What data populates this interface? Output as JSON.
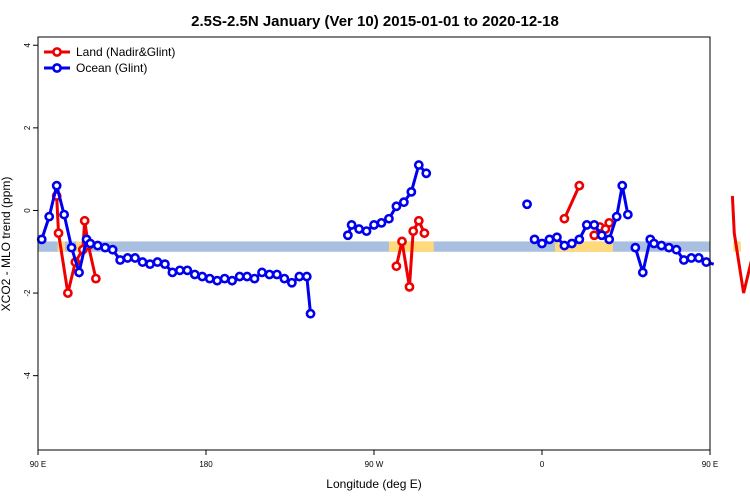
{
  "chart_data": {
    "type": "line",
    "title": "2.5S-2.5N January (Ver 10)   2015-01-01 to 2020-12-18",
    "xlabel": "Longitude (deg E)",
    "ylabel": "XCO2 - MLO trend (ppm)",
    "xlim": [
      90,
      450
    ],
    "ylim": [
      -5.8,
      4.2
    ],
    "x_ticks": [
      {
        "value": 90,
        "label": "90 E"
      },
      {
        "value": 180,
        "label": "180"
      },
      {
        "value": 270,
        "label": "90 W"
      },
      {
        "value": 360,
        "label": "0"
      },
      {
        "value": 450,
        "label": "90 E"
      },
      {
        "value": 540,
        "label": "180"
      }
    ],
    "y_ticks": [
      -4,
      -2,
      0,
      2,
      4
    ],
    "land_mask": {
      "y_range": [
        -1.0,
        -0.75
      ],
      "ocean_color": "#a8bfe0",
      "land_color": "#ffd97a",
      "land_segments": [
        [
          100.5,
          104.5
        ],
        [
          110.5,
          115.5
        ],
        [
          278,
          302
        ],
        [
          367,
          398
        ],
        [
          462.5,
          466.5
        ],
        [
          472.5,
          477.5
        ]
      ]
    },
    "series": [
      {
        "name": "Land (Nadir&Glint)",
        "color": "#ee0000",
        "points": [
          [
            100,
            0.35
          ],
          [
            101,
            -0.55
          ],
          [
            106,
            -2.0
          ],
          [
            110,
            -1.25
          ],
          [
            114,
            -0.95
          ],
          [
            115,
            -0.25
          ],
          [
            117,
            -0.85
          ],
          [
            121,
            -1.65
          ],
          null,
          [
            282,
            -1.35
          ],
          [
            285,
            -0.75
          ],
          [
            289,
            -1.85
          ],
          [
            291,
            -0.5
          ],
          [
            294,
            -0.25
          ],
          [
            297,
            -0.55
          ],
          null,
          [
            372,
            -0.2
          ],
          [
            380,
            0.6
          ],
          null,
          [
            388,
            -0.6
          ],
          [
            391,
            -0.4
          ],
          [
            394,
            -0.45
          ],
          [
            396,
            -0.3
          ],
          null,
          [
            462,
            0.35
          ],
          [
            463,
            -0.55
          ],
          [
            468,
            -2.0
          ],
          [
            472,
            -1.25
          ],
          [
            476,
            -0.95
          ],
          [
            477,
            -0.25
          ],
          [
            479,
            -0.85
          ],
          [
            483,
            -1.65
          ]
        ]
      },
      {
        "name": "Ocean (Glint)",
        "color": "#0000ee",
        "points": [
          [
            92,
            -0.7
          ],
          [
            96,
            -0.15
          ],
          [
            100,
            0.6
          ],
          [
            104,
            -0.1
          ],
          [
            108,
            -0.9
          ],
          [
            112,
            -1.5
          ],
          [
            116,
            -0.7
          ],
          [
            118,
            -0.8
          ],
          [
            122,
            -0.85
          ],
          [
            126,
            -0.9
          ],
          [
            130,
            -0.95
          ],
          [
            134,
            -1.2
          ],
          [
            138,
            -1.15
          ],
          [
            142,
            -1.15
          ],
          [
            146,
            -1.25
          ],
          [
            150,
            -1.3
          ],
          [
            154,
            -1.25
          ],
          [
            158,
            -1.3
          ],
          [
            162,
            -1.5
          ],
          [
            166,
            -1.45
          ],
          [
            170,
            -1.45
          ],
          [
            174,
            -1.55
          ],
          [
            178,
            -1.6
          ],
          [
            182,
            -1.65
          ],
          [
            186,
            -1.7
          ],
          [
            190,
            -1.65
          ],
          [
            194,
            -1.7
          ],
          [
            198,
            -1.6
          ],
          [
            202,
            -1.6
          ],
          [
            206,
            -1.65
          ],
          [
            210,
            -1.5
          ],
          [
            214,
            -1.55
          ],
          [
            218,
            -1.55
          ],
          [
            222,
            -1.65
          ],
          [
            226,
            -1.75
          ],
          [
            230,
            -1.6
          ],
          [
            234,
            -1.6
          ],
          [
            236,
            -2.5
          ],
          null,
          [
            256,
            -0.6
          ],
          [
            258,
            -0.35
          ],
          [
            262,
            -0.45
          ],
          [
            266,
            -0.5
          ],
          [
            270,
            -0.35
          ],
          [
            274,
            -0.3
          ],
          [
            278,
            -0.2
          ],
          [
            282,
            0.1
          ],
          [
            286,
            0.2
          ],
          [
            290,
            0.45
          ],
          [
            294,
            1.1
          ],
          [
            298,
            0.9
          ],
          null,
          [
            352,
            0.15
          ],
          null,
          [
            356,
            -0.7
          ],
          [
            360,
            -0.8
          ],
          [
            364,
            -0.7
          ],
          [
            368,
            -0.65
          ],
          [
            372,
            -0.85
          ],
          [
            376,
            -0.8
          ],
          [
            380,
            -0.7
          ],
          [
            384,
            -0.35
          ],
          [
            388,
            -0.35
          ],
          [
            392,
            -0.6
          ],
          [
            396,
            -0.7
          ],
          [
            400,
            -0.15
          ],
          [
            403,
            0.6
          ],
          [
            406,
            -0.1
          ],
          null,
          [
            410,
            -0.9
          ],
          [
            414,
            -1.5
          ],
          [
            418,
            -0.7
          ],
          [
            420,
            -0.8
          ],
          [
            424,
            -0.85
          ],
          [
            428,
            -0.9
          ],
          [
            432,
            -0.95
          ],
          [
            436,
            -1.2
          ],
          [
            440,
            -1.15
          ],
          [
            444,
            -1.15
          ],
          [
            448,
            -1.25
          ],
          [
            452,
            -1.3
          ]
        ]
      }
    ],
    "legend": {
      "position": "top-left"
    }
  }
}
